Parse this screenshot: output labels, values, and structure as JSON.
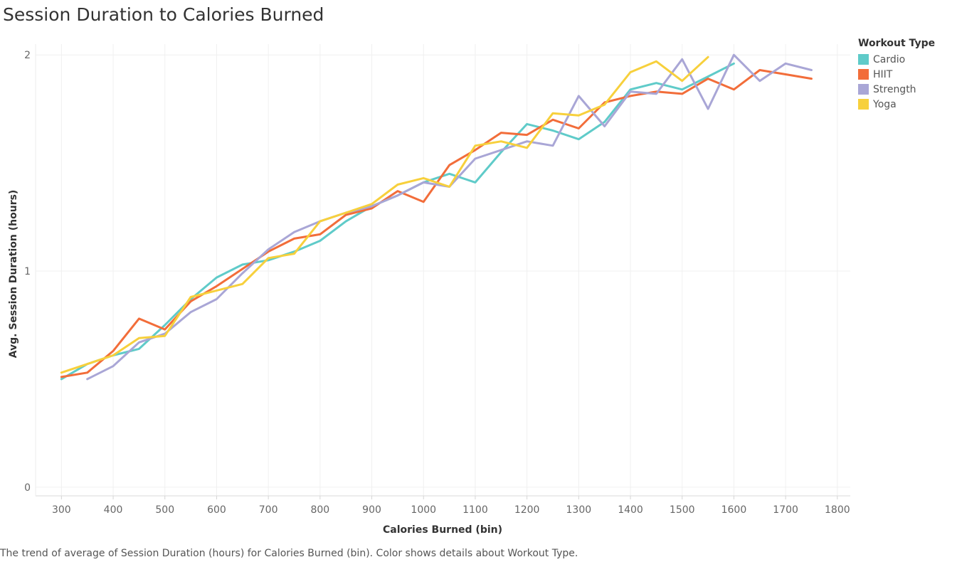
{
  "chart_data": {
    "type": "line",
    "title": "Session Duration to Calories Burned",
    "xlabel": "Calories Burned (bin)",
    "ylabel": "Avg. Session Duration (hours)",
    "xlim": [
      250,
      1825
    ],
    "ylim": [
      -0.04,
      2.05
    ],
    "x_ticks": [
      300,
      400,
      500,
      600,
      700,
      800,
      900,
      1000,
      1100,
      1200,
      1300,
      1400,
      1500,
      1600,
      1700,
      1800
    ],
    "y_ticks": [
      0,
      1,
      2
    ],
    "grid": true,
    "legend_title": "Workout Type",
    "legend_position": "right",
    "series": [
      {
        "name": "Cardio",
        "color": "#5fcbc9",
        "points": [
          [
            300,
            0.5
          ],
          [
            350,
            0.57
          ],
          [
            400,
            0.61
          ],
          [
            450,
            0.64
          ],
          [
            500,
            0.75
          ],
          [
            550,
            0.87
          ],
          [
            600,
            0.97
          ],
          [
            650,
            1.03
          ],
          [
            700,
            1.05
          ],
          [
            750,
            1.09
          ],
          [
            800,
            1.14
          ],
          [
            850,
            1.23
          ],
          [
            900,
            1.3
          ],
          [
            950,
            1.35
          ],
          [
            1000,
            1.41
          ],
          [
            1050,
            1.45
          ],
          [
            1100,
            1.41
          ],
          [
            1150,
            1.55
          ],
          [
            1200,
            1.68
          ],
          [
            1250,
            1.65
          ],
          [
            1300,
            1.61
          ],
          [
            1350,
            1.69
          ],
          [
            1400,
            1.84
          ],
          [
            1450,
            1.87
          ],
          [
            1500,
            1.84
          ],
          [
            1550,
            1.9
          ],
          [
            1600,
            1.96
          ]
        ]
      },
      {
        "name": "HIIT",
        "color": "#f26d3a",
        "points": [
          [
            300,
            0.51
          ],
          [
            350,
            0.53
          ],
          [
            400,
            0.63
          ],
          [
            450,
            0.78
          ],
          [
            500,
            0.73
          ],
          [
            550,
            0.86
          ],
          [
            600,
            0.93
          ],
          [
            650,
            1.01
          ],
          [
            700,
            1.09
          ],
          [
            750,
            1.15
          ],
          [
            800,
            1.17
          ],
          [
            850,
            1.26
          ],
          [
            900,
            1.29
          ],
          [
            950,
            1.37
          ],
          [
            1000,
            1.32
          ],
          [
            1050,
            1.49
          ],
          [
            1100,
            1.56
          ],
          [
            1150,
            1.64
          ],
          [
            1200,
            1.63
          ],
          [
            1250,
            1.7
          ],
          [
            1300,
            1.66
          ],
          [
            1350,
            1.78
          ],
          [
            1400,
            1.81
          ],
          [
            1450,
            1.83
          ],
          [
            1500,
            1.82
          ],
          [
            1550,
            1.89
          ],
          [
            1600,
            1.84
          ],
          [
            1650,
            1.93
          ],
          [
            1700,
            1.91
          ],
          [
            1750,
            1.89
          ]
        ]
      },
      {
        "name": "Strength",
        "color": "#a9a6d6",
        "points": [
          [
            350,
            0.5
          ],
          [
            400,
            0.56
          ],
          [
            450,
            0.67
          ],
          [
            500,
            0.71
          ],
          [
            550,
            0.81
          ],
          [
            600,
            0.87
          ],
          [
            650,
            0.99
          ],
          [
            700,
            1.1
          ],
          [
            750,
            1.18
          ],
          [
            800,
            1.23
          ],
          [
            850,
            1.27
          ],
          [
            900,
            1.3
          ],
          [
            950,
            1.35
          ],
          [
            1000,
            1.41
          ],
          [
            1050,
            1.39
          ],
          [
            1100,
            1.52
          ],
          [
            1150,
            1.56
          ],
          [
            1200,
            1.6
          ],
          [
            1250,
            1.58
          ],
          [
            1300,
            1.81
          ],
          [
            1350,
            1.67
          ],
          [
            1400,
            1.83
          ],
          [
            1450,
            1.82
          ],
          [
            1500,
            1.98
          ],
          [
            1550,
            1.75
          ],
          [
            1600,
            2.0
          ],
          [
            1650,
            1.88
          ],
          [
            1700,
            1.96
          ],
          [
            1750,
            1.93
          ]
        ]
      },
      {
        "name": "Yoga",
        "color": "#f7d03c",
        "points": [
          [
            300,
            0.53
          ],
          [
            350,
            0.57
          ],
          [
            400,
            0.61
          ],
          [
            450,
            0.69
          ],
          [
            500,
            0.7
          ],
          [
            550,
            0.88
          ],
          [
            600,
            0.91
          ],
          [
            650,
            0.94
          ],
          [
            700,
            1.06
          ],
          [
            750,
            1.08
          ],
          [
            800,
            1.23
          ],
          [
            850,
            1.27
          ],
          [
            900,
            1.31
          ],
          [
            950,
            1.4
          ],
          [
            1000,
            1.43
          ],
          [
            1050,
            1.39
          ],
          [
            1100,
            1.58
          ],
          [
            1150,
            1.6
          ],
          [
            1200,
            1.57
          ],
          [
            1250,
            1.73
          ],
          [
            1300,
            1.72
          ],
          [
            1350,
            1.77
          ],
          [
            1400,
            1.92
          ],
          [
            1450,
            1.97
          ],
          [
            1500,
            1.88
          ],
          [
            1550,
            1.99
          ]
        ]
      }
    ]
  },
  "caption": "The trend of average of Session Duration (hours) for Calories Burned (bin).  Color shows details about Workout Type."
}
